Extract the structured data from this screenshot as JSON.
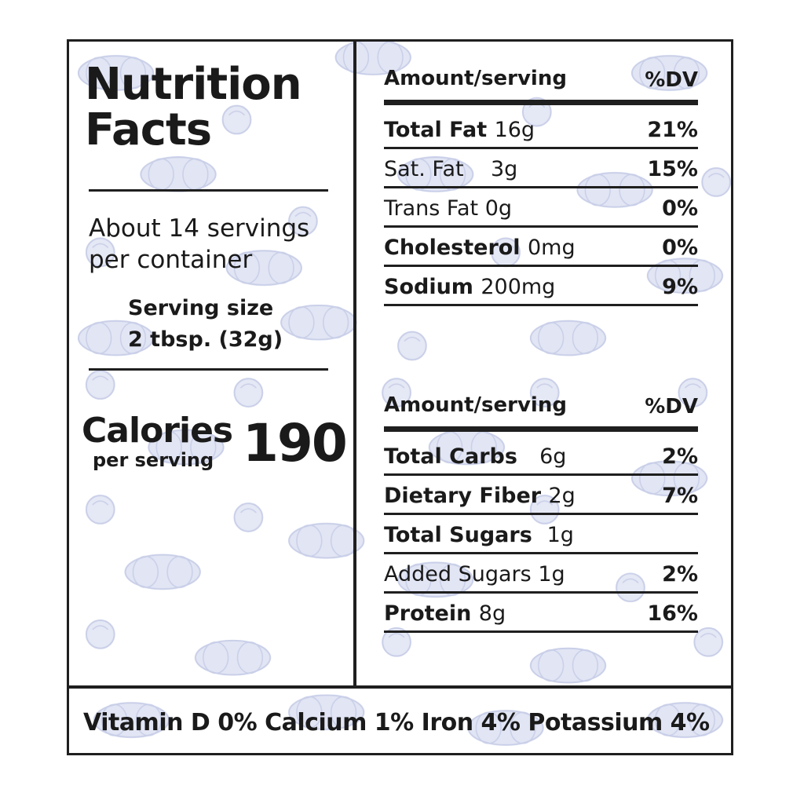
{
  "title": {
    "line1": "Nutrition",
    "line2": "Facts"
  },
  "servings": {
    "line1": "About 14 servings",
    "line2": "per container"
  },
  "serving_size": {
    "label": "Serving size",
    "value": "2 tbsp. (32g)"
  },
  "calories": {
    "label": "Calories",
    "sub": "per serving",
    "value": "190"
  },
  "section1": {
    "header_amount": "Amount/serving",
    "header_dv": "%DV",
    "rows": [
      {
        "name": "Total Fat",
        "amount": "16g",
        "pct": "21%"
      },
      {
        "name": "Sat. Fat",
        "amount": "3g",
        "pct": "15%"
      },
      {
        "name": "Trans Fat",
        "amount": "0g",
        "pct": "0%"
      },
      {
        "name": "Cholesterol",
        "amount": "0mg",
        "pct": "0%"
      },
      {
        "name": "Sodium",
        "amount": "200mg",
        "pct": "9%"
      }
    ]
  },
  "section2": {
    "header_amount": "Amount/serving",
    "header_dv": "%DV",
    "rows": [
      {
        "name": "Total Carbs",
        "amount": "6g",
        "pct": "2%"
      },
      {
        "name": "Dietary Fiber",
        "amount": "2g",
        "pct": "7%"
      },
      {
        "name": "Total Sugars",
        "amount": "1g",
        "pct": ""
      },
      {
        "name": "Added Sugars",
        "amount": "1g",
        "pct": "2%"
      },
      {
        "name": "Protein",
        "amount": "8g",
        "pct": "16%"
      }
    ]
  },
  "footer": {
    "text": "Vitamin D 0% Calcium 1% Iron 4% Potassium 4%"
  },
  "colors": {
    "ink": "#1a1a1a",
    "pattern": "#c9d0ea"
  }
}
